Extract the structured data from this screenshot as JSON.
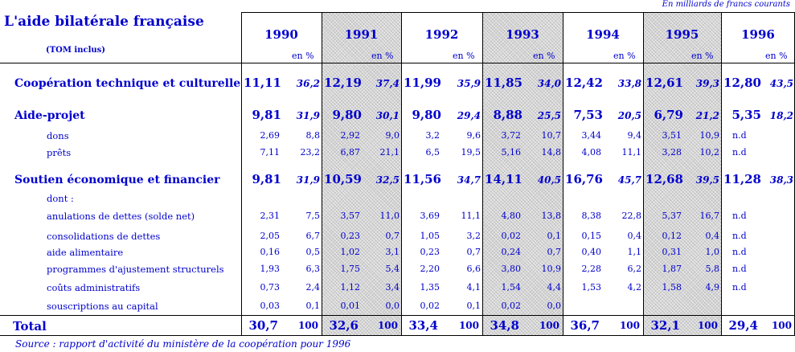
{
  "header": {
    "title": "L'aide bilatérale française",
    "subtitle": "(TOM inclus)",
    "unit_note": "En milliards de francs courants",
    "years": [
      "1990",
      "1991",
      "1992",
      "1993",
      "1994",
      "1995",
      "1996"
    ],
    "pct_label": "en %"
  },
  "rows": [
    {
      "label": "Coopération technique et culturelle",
      "kind": "main",
      "values": [
        "11,11",
        "12,19",
        "11,99",
        "11,85",
        "12,42",
        "12,61",
        "12,80"
      ],
      "pcts": [
        "36,2",
        "37,4",
        "35,9",
        "34,0",
        "33,8",
        "39,3",
        "43,5"
      ]
    },
    {
      "label": "Aide-projet",
      "kind": "main",
      "values": [
        "9,81",
        "9,80",
        "9,80",
        "8,88",
        "7,53",
        "6,79",
        "5,35"
      ],
      "pcts": [
        "31,9",
        "30,1",
        "29,4",
        "25,5",
        "20,5",
        "21,2",
        "18,2"
      ]
    },
    {
      "label": "dons",
      "kind": "sub",
      "values": [
        "2,69",
        "2,92",
        "3,2",
        "3,72",
        "3,44",
        "3,51",
        "n.d"
      ],
      "pcts": [
        "8,8",
        "9,0",
        "9,6",
        "10,7",
        "9,4",
        "10,9",
        ""
      ]
    },
    {
      "label": "prêts",
      "kind": "sub",
      "values": [
        "7,11",
        "6,87",
        "6,5",
        "5,16",
        "4,08",
        "3,28",
        "n.d"
      ],
      "pcts": [
        "23,2",
        "21,1",
        "19,5",
        "14,8",
        "11,1",
        "10,2",
        ""
      ]
    },
    {
      "label": "Soutien économique et financier",
      "kind": "main",
      "values": [
        "9,81",
        "10,59",
        "11,56",
        "14,11",
        "16,76",
        "12,68",
        "11,28"
      ],
      "pcts": [
        "31,9",
        "32,5",
        "34,7",
        "40,5",
        "45,7",
        "39,5",
        "38,3"
      ]
    },
    {
      "label": "dont :",
      "kind": "note",
      "values": [
        "",
        "",
        "",
        "",
        "",
        "",
        ""
      ],
      "pcts": [
        "",
        "",
        "",
        "",
        "",
        "",
        ""
      ]
    },
    {
      "label": "anulations de dettes (solde net)",
      "kind": "sub2",
      "values": [
        "2,31",
        "3,57",
        "3,69",
        "4,80",
        "8,38",
        "5,37",
        "n.d"
      ],
      "pcts": [
        "7,5",
        "11,0",
        "11,1",
        "13,8",
        "22,8",
        "16,7",
        ""
      ]
    },
    {
      "label": "consolidations de dettes",
      "kind": "sub2",
      "values": [
        "2,05",
        "0,23",
        "1,05",
        "0,02",
        "0,15",
        "0,12",
        "n.d"
      ],
      "pcts": [
        "6,7",
        "0,7",
        "3,2",
        "0,1",
        "0,4",
        "0,4",
        ""
      ]
    },
    {
      "label": "aide alimentaire",
      "kind": "sub2",
      "values": [
        "0,16",
        "1,02",
        "0,23",
        "0,24",
        "0,40",
        "0,31",
        "n.d"
      ],
      "pcts": [
        "0,5",
        "3,1",
        "0,7",
        "0,7",
        "1,1",
        "1,0",
        ""
      ]
    },
    {
      "label": "programmes d'ajustement structurels",
      "kind": "sub2",
      "values": [
        "1,93",
        "1,75",
        "2,20",
        "3,80",
        "2,28",
        "1,87",
        "n.d"
      ],
      "pcts": [
        "6,3",
        "5,4",
        "6,6",
        "10,9",
        "6,2",
        "5,8",
        ""
      ]
    },
    {
      "label": "coûts administratifs",
      "kind": "sub2",
      "values": [
        "0,73",
        "1,12",
        "1,35",
        "1,54",
        "1,53",
        "1,58",
        "n.d"
      ],
      "pcts": [
        "2,4",
        "3,4",
        "4,1",
        "4,4",
        "4,2",
        "4,9",
        ""
      ]
    },
    {
      "label": "souscriptions au capital",
      "kind": "sub2",
      "values": [
        "0,03",
        "0,01",
        "0,02",
        "0,02",
        "",
        "",
        ""
      ],
      "pcts": [
        "0,1",
        "0,0",
        "0,1",
        "0,0",
        "",
        "",
        ""
      ]
    }
  ],
  "total": {
    "label": "Total",
    "values": [
      "30,7",
      "32,6",
      "33,4",
      "34,8",
      "36,7",
      "32,1",
      "29,4"
    ],
    "pcts": [
      "100",
      "100",
      "100",
      "100",
      "100",
      "100",
      "100"
    ]
  },
  "source": "Source : rapport d'activité du ministère de la coopération pour 1996"
}
